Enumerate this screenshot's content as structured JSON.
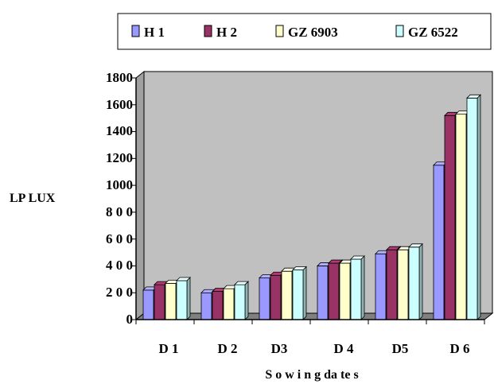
{
  "chart_data": {
    "type": "bar",
    "title": "",
    "xlabel": "S o w i n g da te s",
    "ylabel": "LP LUX",
    "categories": [
      "D 1",
      "D 2",
      "D3",
      "D 4",
      "D5",
      "D 6"
    ],
    "y_tick_labels": [
      "0",
      "2 0 0",
      "4 0 0",
      "6 0 0",
      "8 0 0",
      "1000",
      "1200",
      "1400",
      "1600",
      "1800"
    ],
    "ylim": [
      0,
      1800
    ],
    "grid": false,
    "legend_position": "top",
    "series": [
      {
        "name": "H 1",
        "color": "#9999ff",
        "values": [
          220,
          200,
          310,
          400,
          490,
          1150
        ]
      },
      {
        "name": "H 2",
        "color": "#993366",
        "values": [
          260,
          210,
          330,
          420,
          520,
          1520
        ]
      },
      {
        "name": "GZ 6903",
        "color": "#ffffcc",
        "values": [
          270,
          230,
          360,
          420,
          520,
          1530
        ]
      },
      {
        "name": "GZ 6522",
        "color": "#ccffff",
        "values": [
          290,
          260,
          370,
          450,
          540,
          1650
        ]
      }
    ]
  }
}
